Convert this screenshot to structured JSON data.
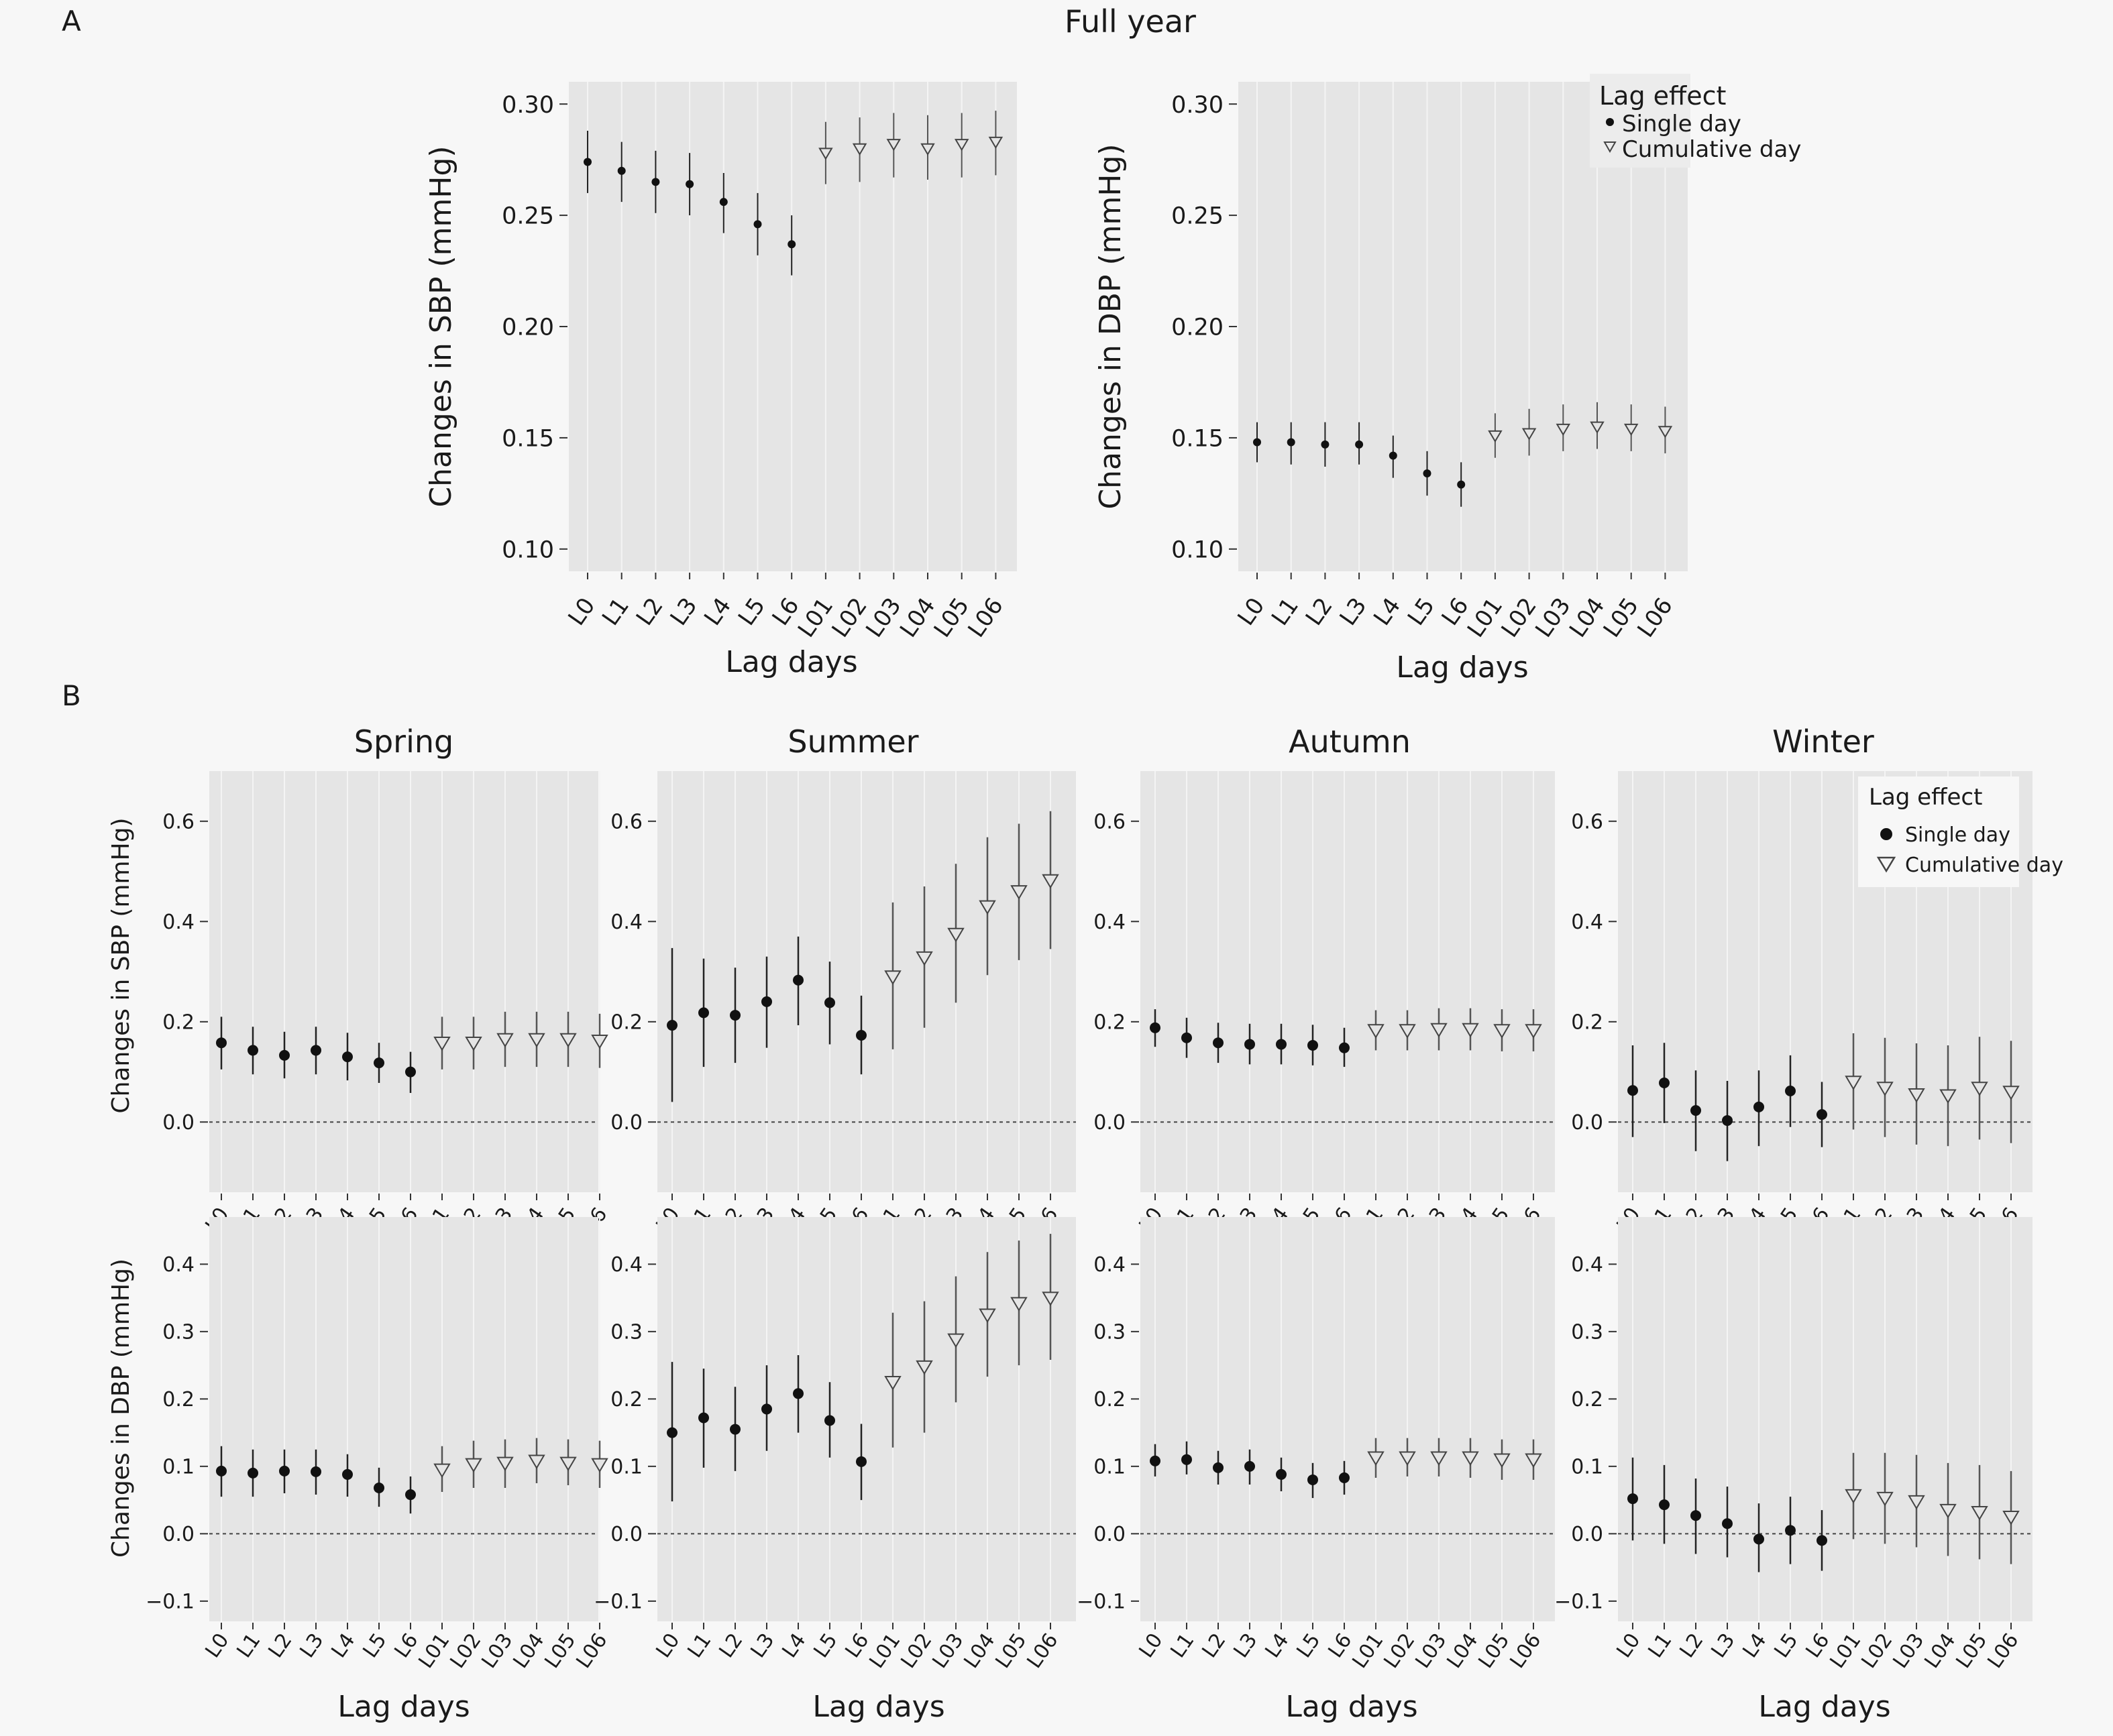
{
  "panel_labels": {
    "a": "A",
    "b": "B"
  },
  "full_year_title": "Full year",
  "legend": {
    "title": "Lag effect",
    "single": "Single day",
    "cumulative": "Cumulative day"
  },
  "lag_labels": [
    "L0",
    "L1",
    "L2",
    "L3",
    "L4",
    "L5",
    "L6",
    "L01",
    "L02",
    "L03",
    "L04",
    "L05",
    "L06"
  ],
  "season_titles": [
    "Spring",
    "Summer",
    "Autumn",
    "Winter"
  ],
  "chart_data": [
    {
      "type": "scatter",
      "panel": "A",
      "title": "Full year",
      "xlabel": "Lag days",
      "ylabel": "Changes in SBP (mmHg)",
      "ylim": [
        0.09,
        0.31
      ],
      "yticks": [
        0.1,
        0.15,
        0.2,
        0.25,
        0.3
      ],
      "ytick_labels": [
        "0.10",
        "0.15",
        "0.20",
        "0.25",
        "0.30"
      ],
      "categories": [
        "L0",
        "L1",
        "L2",
        "L3",
        "L4",
        "L5",
        "L6",
        "L01",
        "L02",
        "L03",
        "L04",
        "L05",
        "L06"
      ],
      "series": [
        {
          "name": "Single day",
          "marker": "dot",
          "x": [
            "L0",
            "L1",
            "L2",
            "L3",
            "L4",
            "L5",
            "L6"
          ],
          "values": [
            0.274,
            0.27,
            0.265,
            0.264,
            0.256,
            0.246,
            0.237
          ],
          "lower": [
            0.26,
            0.256,
            0.251,
            0.25,
            0.242,
            0.232,
            0.223
          ],
          "upper": [
            0.288,
            0.283,
            0.279,
            0.278,
            0.269,
            0.26,
            0.25
          ]
        },
        {
          "name": "Cumulative day",
          "marker": "triangle",
          "x": [
            "L01",
            "L02",
            "L03",
            "L04",
            "L05",
            "L06"
          ],
          "values": [
            0.278,
            0.28,
            0.282,
            0.28,
            0.282,
            0.283
          ],
          "lower": [
            0.264,
            0.265,
            0.267,
            0.266,
            0.267,
            0.268
          ],
          "upper": [
            0.292,
            0.294,
            0.296,
            0.295,
            0.296,
            0.297
          ]
        }
      ]
    },
    {
      "type": "scatter",
      "panel": "A",
      "xlabel": "Lag days",
      "ylabel": "Changes in DBP (mmHg)",
      "ylim": [
        0.09,
        0.31
      ],
      "yticks": [
        0.1,
        0.15,
        0.2,
        0.25,
        0.3
      ],
      "ytick_labels": [
        "0.10",
        "0.15",
        "0.20",
        "0.25",
        "0.30"
      ],
      "categories": [
        "L0",
        "L1",
        "L2",
        "L3",
        "L4",
        "L5",
        "L6",
        "L01",
        "L02",
        "L03",
        "L04",
        "L05",
        "L06"
      ],
      "legend": "top-right",
      "series": [
        {
          "name": "Single day",
          "marker": "dot",
          "x": [
            "L0",
            "L1",
            "L2",
            "L3",
            "L4",
            "L5",
            "L6"
          ],
          "values": [
            0.148,
            0.148,
            0.147,
            0.147,
            0.142,
            0.134,
            0.129
          ],
          "lower": [
            0.139,
            0.138,
            0.137,
            0.138,
            0.132,
            0.124,
            0.119
          ],
          "upper": [
            0.157,
            0.157,
            0.157,
            0.157,
            0.151,
            0.144,
            0.139
          ]
        },
        {
          "name": "Cumulative day",
          "marker": "triangle",
          "x": [
            "L01",
            "L02",
            "L03",
            "L04",
            "L05",
            "L06"
          ],
          "values": [
            0.151,
            0.152,
            0.154,
            0.155,
            0.154,
            0.153
          ],
          "lower": [
            0.141,
            0.142,
            0.144,
            0.145,
            0.144,
            0.143
          ],
          "upper": [
            0.161,
            0.163,
            0.165,
            0.166,
            0.165,
            0.164
          ]
        }
      ]
    },
    {
      "type": "scatter",
      "panel": "B",
      "title": "Spring",
      "ylabel": "Changes in SBP (mmHg)",
      "ylim": [
        -0.14,
        0.7
      ],
      "yticks": [
        0.0,
        0.2,
        0.4,
        0.6
      ],
      "ytick_labels": [
        "0.0",
        "0.2",
        "0.4",
        "0.6"
      ],
      "reference_line": 0,
      "values": [
        0.158,
        0.143,
        0.133,
        0.143,
        0.13,
        0.118,
        0.1,
        0.158,
        0.158,
        0.165,
        0.165,
        0.165,
        0.162
      ],
      "lower": [
        0.105,
        0.095,
        0.087,
        0.095,
        0.083,
        0.078,
        0.058,
        0.105,
        0.105,
        0.11,
        0.11,
        0.11,
        0.108
      ],
      "upper": [
        0.21,
        0.19,
        0.18,
        0.19,
        0.178,
        0.158,
        0.14,
        0.21,
        0.21,
        0.22,
        0.22,
        0.22,
        0.216
      ]
    },
    {
      "type": "scatter",
      "panel": "B",
      "title": "Summer",
      "ylim": [
        -0.14,
        0.7
      ],
      "yticks": [
        0.0,
        0.2,
        0.4,
        0.6
      ],
      "ytick_labels": [
        "0.0",
        "0.2",
        "0.4",
        "0.6"
      ],
      "reference_line": 0,
      "values": [
        0.193,
        0.218,
        0.213,
        0.24,
        0.283,
        0.238,
        0.173,
        0.29,
        0.328,
        0.375,
        0.43,
        0.46,
        0.482
      ],
      "lower": [
        0.04,
        0.11,
        0.118,
        0.148,
        0.193,
        0.155,
        0.095,
        0.145,
        0.188,
        0.238,
        0.293,
        0.323,
        0.345
      ],
      "upper": [
        0.347,
        0.326,
        0.308,
        0.33,
        0.37,
        0.32,
        0.252,
        0.438,
        0.47,
        0.515,
        0.568,
        0.595,
        0.62
      ]
    },
    {
      "type": "scatter",
      "panel": "B",
      "title": "Autumn",
      "ylim": [
        -0.14,
        0.7
      ],
      "yticks": [
        0.0,
        0.2,
        0.4,
        0.6
      ],
      "ytick_labels": [
        "0.0",
        "0.2",
        "0.4",
        "0.6"
      ],
      "reference_line": 0,
      "values": [
        0.188,
        0.168,
        0.158,
        0.155,
        0.155,
        0.153,
        0.148,
        0.183,
        0.183,
        0.185,
        0.185,
        0.183,
        0.183
      ],
      "lower": [
        0.15,
        0.128,
        0.118,
        0.115,
        0.115,
        0.113,
        0.11,
        0.143,
        0.143,
        0.143,
        0.143,
        0.141,
        0.141
      ],
      "upper": [
        0.225,
        0.208,
        0.198,
        0.196,
        0.196,
        0.194,
        0.188,
        0.223,
        0.223,
        0.227,
        0.227,
        0.225,
        0.225
      ]
    },
    {
      "type": "scatter",
      "panel": "B",
      "title": "Winter",
      "ylim": [
        -0.14,
        0.7
      ],
      "yticks": [
        0.0,
        0.2,
        0.4,
        0.6
      ],
      "ytick_labels": [
        "0.0",
        "0.2",
        "0.4",
        "0.6"
      ],
      "reference_line": 0,
      "legend": "top-right",
      "values": [
        0.063,
        0.078,
        0.023,
        0.003,
        0.03,
        0.062,
        0.015,
        0.08,
        0.068,
        0.055,
        0.053,
        0.068,
        0.06
      ],
      "lower": [
        -0.03,
        -0.002,
        -0.058,
        -0.078,
        -0.048,
        -0.01,
        -0.05,
        -0.015,
        -0.03,
        -0.045,
        -0.048,
        -0.035,
        -0.042
      ],
      "upper": [
        0.153,
        0.158,
        0.103,
        0.082,
        0.103,
        0.133,
        0.08,
        0.177,
        0.168,
        0.157,
        0.153,
        0.17,
        0.162
      ]
    },
    {
      "type": "scatter",
      "panel": "B",
      "ylabel": "Changes in DBP (mmHg)",
      "xlabel": "Lag days",
      "ylim": [
        -0.13,
        0.47
      ],
      "yticks": [
        -0.1,
        0.0,
        0.1,
        0.2,
        0.3,
        0.4
      ],
      "ytick_labels": [
        "−0.1",
        "0.0",
        "0.1",
        "0.2",
        "0.3",
        "0.4"
      ],
      "reference_line": 0,
      "values": [
        0.093,
        0.09,
        0.093,
        0.092,
        0.088,
        0.068,
        0.058,
        0.095,
        0.103,
        0.105,
        0.108,
        0.105,
        0.103
      ],
      "lower": [
        0.055,
        0.055,
        0.06,
        0.058,
        0.055,
        0.04,
        0.03,
        0.062,
        0.068,
        0.068,
        0.075,
        0.072,
        0.068
      ],
      "upper": [
        0.13,
        0.125,
        0.125,
        0.125,
        0.118,
        0.098,
        0.085,
        0.13,
        0.138,
        0.14,
        0.142,
        0.14,
        0.138
      ]
    },
    {
      "type": "scatter",
      "panel": "B",
      "xlabel": "Lag days",
      "ylim": [
        -0.13,
        0.47
      ],
      "yticks": [
        -0.1,
        0.0,
        0.1,
        0.2,
        0.3,
        0.4
      ],
      "ytick_labels": [
        "−0.1",
        "0.0",
        "0.1",
        "0.2",
        "0.3",
        "0.4"
      ],
      "reference_line": 0,
      "values": [
        0.15,
        0.172,
        0.155,
        0.185,
        0.208,
        0.168,
        0.107,
        0.225,
        0.248,
        0.288,
        0.325,
        0.342,
        0.35
      ],
      "lower": [
        0.048,
        0.098,
        0.093,
        0.123,
        0.15,
        0.113,
        0.05,
        0.128,
        0.15,
        0.195,
        0.233,
        0.25,
        0.258
      ],
      "upper": [
        0.255,
        0.245,
        0.218,
        0.25,
        0.265,
        0.225,
        0.163,
        0.328,
        0.345,
        0.382,
        0.418,
        0.435,
        0.445
      ]
    },
    {
      "type": "scatter",
      "panel": "B",
      "xlabel": "Lag days",
      "ylim": [
        -0.13,
        0.47
      ],
      "yticks": [
        -0.1,
        0.0,
        0.1,
        0.2,
        0.3,
        0.4
      ],
      "ytick_labels": [
        "−0.1",
        "0.0",
        "0.1",
        "0.2",
        "0.3",
        "0.4"
      ],
      "reference_line": 0,
      "values": [
        0.108,
        0.11,
        0.098,
        0.1,
        0.088,
        0.08,
        0.083,
        0.113,
        0.113,
        0.113,
        0.113,
        0.11,
        0.11
      ],
      "lower": [
        0.085,
        0.088,
        0.073,
        0.073,
        0.063,
        0.053,
        0.058,
        0.083,
        0.085,
        0.085,
        0.083,
        0.08,
        0.08
      ],
      "upper": [
        0.133,
        0.137,
        0.123,
        0.125,
        0.113,
        0.105,
        0.108,
        0.142,
        0.142,
        0.142,
        0.142,
        0.14,
        0.14
      ]
    },
    {
      "type": "scatter",
      "panel": "B",
      "xlabel": "Lag days",
      "ylim": [
        -0.13,
        0.47
      ],
      "yticks": [
        -0.1,
        0.0,
        0.1,
        0.2,
        0.3,
        0.4
      ],
      "ytick_labels": [
        "−0.1",
        "0.0",
        "0.1",
        "0.2",
        "0.3",
        "0.4"
      ],
      "reference_line": 0,
      "values": [
        0.052,
        0.043,
        0.027,
        0.015,
        -0.008,
        0.005,
        -0.01,
        0.057,
        0.053,
        0.048,
        0.035,
        0.032,
        0.025
      ],
      "lower": [
        -0.01,
        -0.015,
        -0.03,
        -0.035,
        -0.057,
        -0.045,
        -0.055,
        -0.008,
        -0.015,
        -0.02,
        -0.033,
        -0.038,
        -0.045
      ],
      "upper": [
        0.113,
        0.102,
        0.082,
        0.07,
        0.045,
        0.055,
        0.035,
        0.12,
        0.12,
        0.117,
        0.105,
        0.102,
        0.093
      ]
    }
  ]
}
